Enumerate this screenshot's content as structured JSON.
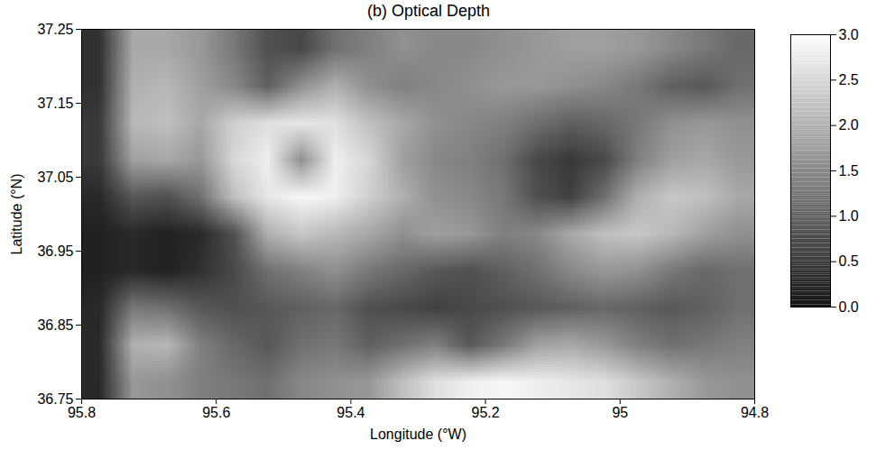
{
  "chart_data": {
    "type": "heatmap",
    "title": "(b) Optical Depth",
    "x_label": "Longitude (°W)",
    "y_label": "Latitude (°N)",
    "xlim": [
      95.8,
      94.8
    ],
    "ylim": [
      36.75,
      37.25
    ],
    "xticks": [
      95.8,
      95.6,
      95.4,
      95.2,
      95.0,
      94.8
    ],
    "yticks": [
      36.75,
      36.85,
      36.95,
      37.05,
      37.15,
      37.25
    ],
    "grid": false,
    "x": [
      95.775,
      95.725,
      95.675,
      95.625,
      95.575,
      95.525,
      95.475,
      95.425,
      95.375,
      95.325,
      95.275,
      95.225,
      95.175,
      95.125,
      95.075,
      95.025,
      94.975,
      94.925,
      94.875,
      94.825
    ],
    "y": [
      37.225,
      37.175,
      37.125,
      37.075,
      37.025,
      36.975,
      36.925,
      36.875,
      36.825,
      36.775
    ],
    "cells": [
      [
        0.4,
        1.9,
        1.9,
        1.7,
        1.3,
        0.8,
        0.7,
        1.2,
        1.4,
        1.6,
        1.5,
        1.5,
        1.6,
        1.7,
        1.8,
        1.8,
        1.7,
        1.5,
        1.3,
        1.1
      ],
      [
        0.4,
        2.0,
        2.1,
        1.8,
        1.5,
        1.0,
        1.6,
        2.0,
        1.6,
        1.4,
        1.5,
        1.6,
        1.7,
        1.7,
        1.6,
        1.5,
        1.3,
        1.0,
        0.9,
        1.2
      ],
      [
        0.5,
        2.1,
        2.2,
        1.9,
        2.4,
        2.6,
        2.7,
        2.6,
        2.2,
        1.9,
        1.6,
        1.5,
        1.4,
        1.2,
        1.0,
        1.1,
        1.3,
        1.6,
        1.7,
        1.6
      ],
      [
        0.5,
        1.8,
        1.9,
        1.7,
        2.5,
        2.8,
        1.6,
        2.8,
        2.5,
        1.8,
        1.5,
        1.4,
        1.2,
        0.7,
        0.5,
        0.7,
        1.4,
        1.8,
        1.9,
        1.7
      ],
      [
        0.3,
        0.9,
        0.8,
        1.2,
        2.2,
        2.7,
        2.9,
        2.8,
        2.4,
        2.0,
        1.6,
        1.5,
        1.3,
        0.8,
        0.6,
        1.2,
        2.0,
        2.3,
        2.2,
        1.9
      ],
      [
        0.2,
        0.3,
        0.2,
        0.3,
        0.8,
        2.0,
        2.3,
        2.1,
        1.9,
        1.6,
        1.8,
        1.7,
        1.4,
        1.5,
        1.9,
        2.2,
        2.3,
        2.1,
        1.8,
        1.6
      ],
      [
        0.2,
        0.3,
        0.2,
        0.4,
        0.7,
        1.2,
        1.4,
        1.6,
        1.3,
        1.1,
        0.9,
        0.8,
        1.0,
        1.2,
        1.5,
        1.7,
        1.6,
        1.3,
        1.1,
        1.2
      ],
      [
        0.3,
        1.3,
        1.2,
        0.9,
        0.8,
        0.9,
        1.0,
        1.1,
        0.8,
        0.7,
        0.6,
        0.7,
        0.8,
        0.9,
        1.0,
        1.1,
        1.0,
        0.9,
        1.0,
        1.2
      ],
      [
        0.3,
        2.0,
        2.1,
        1.4,
        1.1,
        0.9,
        1.2,
        1.3,
        1.0,
        1.2,
        1.4,
        0.9,
        1.3,
        1.8,
        1.9,
        1.7,
        1.4,
        1.2,
        1.3,
        1.4
      ],
      [
        0.3,
        1.7,
        1.6,
        1.4,
        1.3,
        1.2,
        1.5,
        1.6,
        1.7,
        2.2,
        2.6,
        2.8,
        2.9,
        2.8,
        2.7,
        2.6,
        2.3,
        2.0,
        1.7,
        1.6
      ]
    ],
    "colorbar": {
      "range": [
        0,
        3
      ],
      "ticks": [
        {
          "value": 0,
          "label": "0.0"
        },
        {
          "value": 0.5,
          "label": "0.5"
        },
        {
          "value": 1,
          "label": "1.0"
        },
        {
          "value": 1.5,
          "label": "1.5"
        },
        {
          "value": 2,
          "label": "2.0"
        },
        {
          "value": 2.5,
          "label": "2.5"
        },
        {
          "value": 3,
          "label": "3.0"
        }
      ]
    }
  }
}
